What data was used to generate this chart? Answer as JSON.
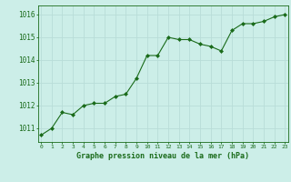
{
  "x": [
    0,
    1,
    2,
    3,
    4,
    5,
    6,
    7,
    8,
    9,
    10,
    11,
    12,
    13,
    14,
    15,
    16,
    17,
    18,
    19,
    20,
    21,
    22,
    23
  ],
  "y": [
    1010.7,
    1011.0,
    1011.7,
    1011.6,
    1012.0,
    1012.1,
    1012.1,
    1012.4,
    1012.5,
    1013.2,
    1014.2,
    1014.2,
    1015.0,
    1014.9,
    1014.9,
    1014.7,
    1014.6,
    1014.4,
    1015.3,
    1015.6,
    1015.6,
    1015.7,
    1015.9,
    1016.0
  ],
  "line_color": "#1a6b1a",
  "marker_color": "#1a6b1a",
  "bg_color": "#cceee8",
  "grid_color": "#b8ddd8",
  "title": "Graphe pression niveau de la mer (hPa)",
  "title_color": "#1a6b1a",
  "ylabel_values": [
    1011,
    1012,
    1013,
    1014,
    1015,
    1016
  ],
  "xlabel_values": [
    0,
    1,
    2,
    3,
    4,
    5,
    6,
    7,
    8,
    9,
    10,
    11,
    12,
    13,
    14,
    15,
    16,
    17,
    18,
    19,
    20,
    21,
    22,
    23
  ],
  "ylim": [
    1010.4,
    1016.4
  ],
  "xlim": [
    -0.3,
    23.3
  ]
}
